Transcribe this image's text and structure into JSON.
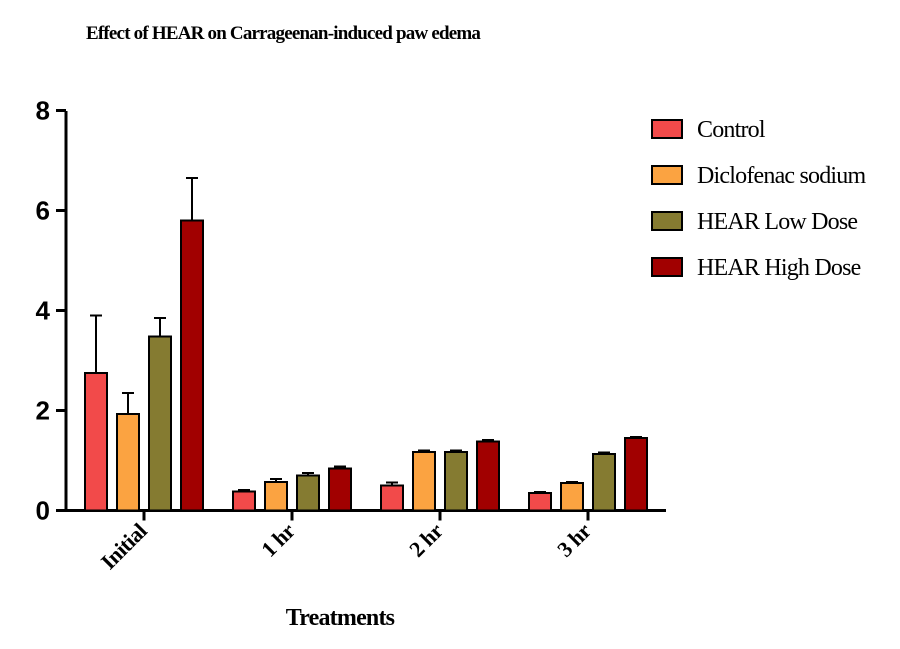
{
  "chart_data": {
    "type": "bar",
    "title": "Effect of HEAR on Carrageenan-induced paw edema",
    "xlabel": "Treatments",
    "ylabel": "",
    "ylim": [
      0,
      8
    ],
    "yticks": [
      "0",
      "2",
      "4",
      "6",
      "8"
    ],
    "categories": [
      "Initial",
      "1 hr",
      "2 hr",
      "3 hr"
    ],
    "legend_position": "right",
    "error_bars": true,
    "series": [
      {
        "name": "Control",
        "color": "#f24a4a",
        "values": [
          2.75,
          0.38,
          0.5,
          0.35
        ],
        "errors": [
          1.15,
          0.03,
          0.06,
          0.02
        ]
      },
      {
        "name": "Diclofenac sodium",
        "color": "#fba341",
        "values": [
          1.93,
          0.57,
          1.17,
          0.55
        ],
        "errors": [
          0.42,
          0.06,
          0.03,
          0.02
        ]
      },
      {
        "name": "HEAR Low Dose",
        "color": "#857b31",
        "values": [
          3.48,
          0.7,
          1.17,
          1.13
        ],
        "errors": [
          0.37,
          0.05,
          0.03,
          0.03
        ]
      },
      {
        "name": "HEAR High Dose",
        "color": "#a10000",
        "values": [
          5.8,
          0.84,
          1.38,
          1.45
        ],
        "errors": [
          0.85,
          0.04,
          0.03,
          0.02
        ]
      }
    ]
  }
}
